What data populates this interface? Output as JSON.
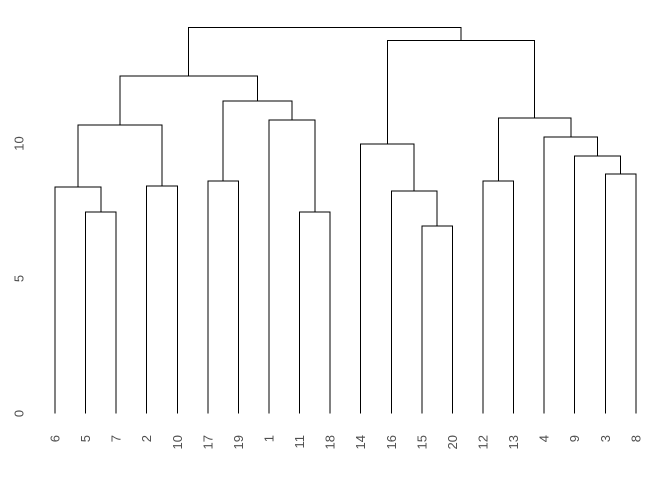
{
  "figure": {
    "title": "",
    "background": "#ffffff"
  },
  "chart_data": {
    "type": "dendrogram",
    "title": "",
    "xlabel": "",
    "ylabel": "",
    "legend": "none",
    "grid": false,
    "orientation": "vertical-leaves-bottom",
    "leaf_order": [
      "6",
      "5",
      "7",
      "2",
      "10",
      "17",
      "19",
      "1",
      "11",
      "18",
      "14",
      "16",
      "15",
      "20",
      "12",
      "13",
      "4",
      "9",
      "3",
      "8"
    ],
    "y_axis": {
      "ticks": [
        "0",
        "5",
        "10"
      ],
      "tick_values": [
        0,
        5,
        10
      ],
      "ylim": [
        0,
        14.8
      ],
      "labels_rotated": true
    },
    "colors": {
      "line": "#000000",
      "text": "#4f4f4f"
    },
    "tree": {
      "height": 14.3,
      "children": [
        {
          "height": 12.5,
          "children": [
            {
              "height": 10.69,
              "children": [
                {
                  "height": 8.39,
                  "children": [
                    {
                      "leaf": "6"
                    },
                    {
                      "height": 7.46,
                      "children": [
                        {
                          "leaf": "5"
                        },
                        {
                          "leaf": "7"
                        }
                      ]
                    }
                  ]
                },
                {
                  "height": 8.43,
                  "children": [
                    {
                      "leaf": "2"
                    },
                    {
                      "leaf": "10"
                    }
                  ]
                }
              ]
            },
            {
              "height": 11.57,
              "children": [
                {
                  "height": 8.61,
                  "children": [
                    {
                      "leaf": "17"
                    },
                    {
                      "leaf": "19"
                    }
                  ]
                },
                {
                  "height": 10.87,
                  "children": [
                    {
                      "leaf": "1"
                    },
                    {
                      "height": 7.46,
                      "children": [
                        {
                          "leaf": "11"
                        },
                        {
                          "leaf": "18"
                        }
                      ]
                    }
                  ]
                }
              ]
            }
          ]
        },
        {
          "height": 13.81,
          "children": [
            {
              "height": 9.98,
              "children": [
                {
                  "leaf": "14"
                },
                {
                  "height": 8.24,
                  "children": [
                    {
                      "leaf": "16"
                    },
                    {
                      "height": 6.94,
                      "children": [
                        {
                          "leaf": "15"
                        },
                        {
                          "leaf": "20"
                        }
                      ]
                    }
                  ]
                }
              ]
            },
            {
              "height": 10.94,
              "children": [
                {
                  "height": 8.61,
                  "children": [
                    {
                      "leaf": "12"
                    },
                    {
                      "leaf": "13"
                    }
                  ]
                },
                {
                  "height": 10.24,
                  "children": [
                    {
                      "leaf": "4"
                    },
                    {
                      "height": 9.54,
                      "children": [
                        {
                          "leaf": "9"
                        },
                        {
                          "height": 8.87,
                          "children": [
                            {
                              "leaf": "3"
                            },
                            {
                              "leaf": "8"
                            }
                          ]
                        }
                      ]
                    }
                  ]
                }
              ]
            }
          ]
        }
      ]
    }
  }
}
